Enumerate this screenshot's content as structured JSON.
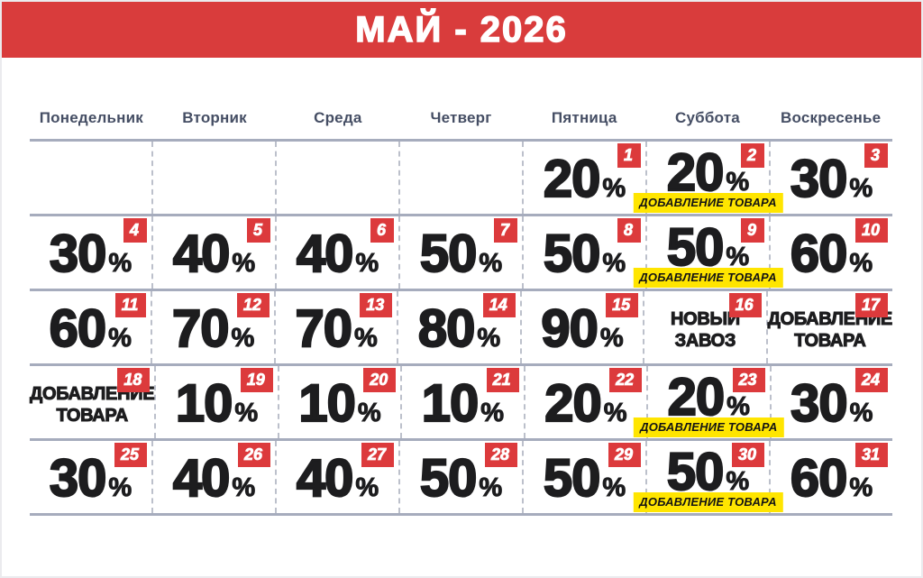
{
  "page": {
    "title": "МАЙ - 2026"
  },
  "weekdays": [
    "Понедельник",
    "Вторник",
    "Среда",
    "Четверг",
    "Пятница",
    "Суббота",
    "Воскресенье"
  ],
  "labels": {
    "percent_sign": "%"
  },
  "calendar": {
    "weeks": [
      [
        null,
        null,
        null,
        null,
        {
          "day": 1,
          "percent": "20"
        },
        {
          "day": 2,
          "percent": "20",
          "tag": "ДОБАВЛЕНИЕ ТОВАРА"
        },
        {
          "day": 3,
          "percent": "30"
        }
      ],
      [
        {
          "day": 4,
          "percent": "30"
        },
        {
          "day": 5,
          "percent": "40"
        },
        {
          "day": 6,
          "percent": "40"
        },
        {
          "day": 7,
          "percent": "50"
        },
        {
          "day": 8,
          "percent": "50"
        },
        {
          "day": 9,
          "percent": "50",
          "tag": "ДОБАВЛЕНИЕ ТОВАРА"
        },
        {
          "day": 10,
          "percent": "60"
        }
      ],
      [
        {
          "day": 11,
          "percent": "60"
        },
        {
          "day": 12,
          "percent": "70"
        },
        {
          "day": 13,
          "percent": "70"
        },
        {
          "day": 14,
          "percent": "80"
        },
        {
          "day": 15,
          "percent": "90"
        },
        {
          "day": 16,
          "text": [
            "НОВЫЙ",
            "ЗАВОЗ"
          ]
        },
        {
          "day": 17,
          "text": [
            "ДОБАВЛЕНИЕ",
            "ТОВАРА"
          ]
        }
      ],
      [
        {
          "day": 18,
          "text": [
            "ДОБАВЛЕНИЕ",
            "ТОВАРА"
          ]
        },
        {
          "day": 19,
          "percent": "10"
        },
        {
          "day": 20,
          "percent": "10"
        },
        {
          "day": 21,
          "percent": "10"
        },
        {
          "day": 22,
          "percent": "20"
        },
        {
          "day": 23,
          "percent": "20",
          "tag": "ДОБАВЛЕНИЕ ТОВАРА"
        },
        {
          "day": 24,
          "percent": "30"
        }
      ],
      [
        {
          "day": 25,
          "percent": "30"
        },
        {
          "day": 26,
          "percent": "40"
        },
        {
          "day": 27,
          "percent": "40"
        },
        {
          "day": 28,
          "percent": "50"
        },
        {
          "day": 29,
          "percent": "50"
        },
        {
          "day": 30,
          "percent": "50",
          "tag": "ДОБАВЛЕНИЕ ТОВАРА"
        },
        {
          "day": 31,
          "percent": "60"
        }
      ]
    ]
  },
  "colors": {
    "red": "#d93c3c",
    "badgered": "#dc3a3c",
    "yellow": "#ffe500",
    "ink": "#1d1d1f",
    "header": "#454e64",
    "gridline": "#a6acbd",
    "dashline": "#bcc0cb"
  }
}
